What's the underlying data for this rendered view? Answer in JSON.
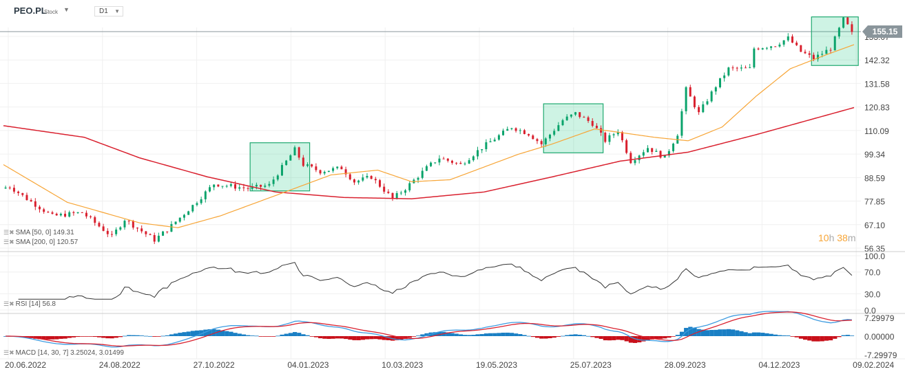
{
  "header": {
    "symbol": "PEO.PL",
    "type": "Stock",
    "timeframe": "D1"
  },
  "countdown": {
    "hours": "10",
    "h": "h",
    "minutes": "38",
    "m": "m"
  },
  "legends": {
    "sma50": "SMA [50, 0] 149.31",
    "sma200": "SMA [200, 0] 120.57",
    "rsi": "RSI [14] 56.8",
    "macd": "MACD [14, 30, 7] 3.25024, 3.01499"
  },
  "colors": {
    "up": "#0aa36b",
    "down": "#d9202e",
    "sma50": "#f7a536",
    "sma200": "#d9202e",
    "rsi": "#333333",
    "macd": "#3d9be0",
    "signal": "#d9202e",
    "box": "#1fa970"
  },
  "chart_data": {
    "type": "candlestick",
    "last_price": "155.15",
    "price_ticks": [
      "153.07",
      "142.32",
      "131.58",
      "120.83",
      "110.09",
      "99.34",
      "88.59",
      "77.85",
      "67.10",
      "56.35"
    ],
    "price_range": [
      56.35,
      153.07
    ],
    "bars": 200,
    "date_ticks": [
      "20.06.2022",
      "24.08.2022",
      "27.10.2022",
      "04.01.2023",
      "10.03.2023",
      "19.05.2023",
      "25.07.2023",
      "28.09.2023",
      "04.12.2023",
      "09.02.2024"
    ],
    "close_path": [
      [
        0,
        83.6
      ],
      [
        2,
        84.5
      ],
      [
        6,
        78.9
      ],
      [
        12,
        71
      ],
      [
        19,
        72.6
      ],
      [
        26,
        61.7
      ],
      [
        29,
        69.5
      ],
      [
        36,
        60.1
      ],
      [
        39,
        64.8
      ],
      [
        45,
        75.8
      ],
      [
        50,
        85.7
      ],
      [
        58,
        83.6
      ],
      [
        63,
        85.1
      ],
      [
        69,
        101.4
      ],
      [
        71,
        94.5
      ],
      [
        75,
        91.4
      ],
      [
        80,
        93
      ],
      [
        83,
        86.7
      ],
      [
        87,
        88.9
      ],
      [
        92,
        78.9
      ],
      [
        95,
        83.6
      ],
      [
        100,
        93
      ],
      [
        103,
        97.6
      ],
      [
        108,
        94.5
      ],
      [
        113,
        102.3
      ],
      [
        120,
        111.7
      ],
      [
        124,
        108.6
      ],
      [
        127,
        103.9
      ],
      [
        132,
        114.8
      ],
      [
        135,
        117.9
      ],
      [
        139,
        113.3
      ],
      [
        142,
        105.5
      ],
      [
        145,
        110.1
      ],
      [
        148,
        96.1
      ],
      [
        152,
        102.3
      ],
      [
        156,
        97.6
      ],
      [
        159,
        108.6
      ],
      [
        161,
        128.9
      ],
      [
        164,
        117.9
      ],
      [
        168,
        130.4
      ],
      [
        171,
        138.3
      ],
      [
        176,
        138.3
      ],
      [
        177,
        147.6
      ],
      [
        182,
        149.2
      ],
      [
        185,
        152.3
      ],
      [
        188,
        146.1
      ],
      [
        191,
        143
      ],
      [
        195,
        147.6
      ],
      [
        198,
        160.8
      ],
      [
        200,
        155.15
      ]
    ],
    "sma50": [
      [
        0,
        94.5
      ],
      [
        15,
        77.3
      ],
      [
        32,
        67.9
      ],
      [
        41,
        65.7
      ],
      [
        51,
        71.1
      ],
      [
        64,
        80.4
      ],
      [
        77,
        89.8
      ],
      [
        88,
        92
      ],
      [
        96,
        86.7
      ],
      [
        105,
        87.6
      ],
      [
        121,
        99.2
      ],
      [
        129,
        103.9
      ],
      [
        139,
        110.8
      ],
      [
        145,
        109.2
      ],
      [
        153,
        107
      ],
      [
        161,
        105.4
      ],
      [
        169,
        111.7
      ],
      [
        177,
        125.8
      ],
      [
        185,
        138.3
      ],
      [
        194,
        145.1
      ],
      [
        200,
        149.31
      ]
    ],
    "sma200": [
      [
        0,
        112.3
      ],
      [
        19,
        107
      ],
      [
        32,
        97.6
      ],
      [
        48,
        88.9
      ],
      [
        64,
        82
      ],
      [
        80,
        79.5
      ],
      [
        96,
        78.9
      ],
      [
        113,
        82
      ],
      [
        129,
        88.9
      ],
      [
        145,
        96.1
      ],
      [
        161,
        100.2
      ],
      [
        177,
        108.2
      ],
      [
        200,
        120.57
      ]
    ],
    "highlight_boxes": [
      {
        "from_bar": 58,
        "to_bar": 72,
        "low": 82.5,
        "high": 104.5
      },
      {
        "from_bar": 127,
        "to_bar": 141,
        "low": 99.9,
        "high": 122.3
      },
      {
        "from_bar": 190,
        "to_bar": 201,
        "low": 139.8,
        "high": 162
      }
    ],
    "rsi": {
      "ticks": [
        "100.0",
        "70.0",
        "30.0",
        "0.0"
      ],
      "last": 56.8
    },
    "macd": {
      "ticks": [
        "7.29979",
        "0.00000",
        "-7.29979"
      ],
      "range": [
        -7.29979,
        7.29979
      ],
      "macd": 3.25024,
      "signal": 3.01499
    }
  }
}
